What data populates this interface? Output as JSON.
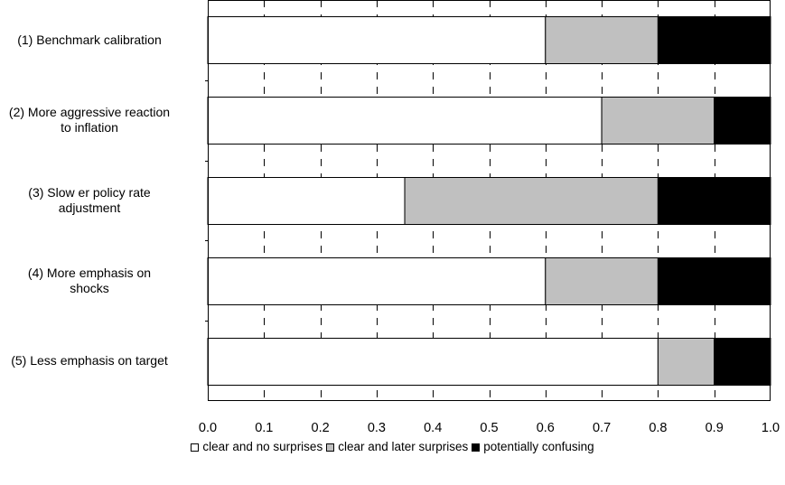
{
  "chart_data": {
    "type": "bar",
    "orientation": "horizontal",
    "stacked": true,
    "categories": [
      [
        "(1) Benchmark calibration"
      ],
      [
        "(2) More aggressive reaction",
        "to inflation"
      ],
      [
        "(3) Slow er policy rate",
        "adjustment"
      ],
      [
        "(4) More emphasis on",
        "shocks"
      ],
      [
        "(5) Less emphasis on  target"
      ]
    ],
    "series": [
      {
        "name": "clear and no surprises",
        "color": "#ffffff",
        "values": [
          0.6,
          0.7,
          0.35,
          0.6,
          0.8
        ]
      },
      {
        "name": "clear and later surprises",
        "color": "#c0c0c0",
        "values": [
          0.2,
          0.2,
          0.45,
          0.2,
          0.1
        ]
      },
      {
        "name": "potentially confusing",
        "color": "#000000",
        "values": [
          0.2,
          0.1,
          0.2,
          0.2,
          0.1
        ]
      }
    ],
    "xlim": [
      0,
      1
    ],
    "xticks": [
      "0.0",
      "0.1",
      "0.2",
      "0.3",
      "0.4",
      "0.5",
      "0.6",
      "0.7",
      "0.8",
      "0.9",
      "1.0"
    ],
    "grid": "vertical dashed",
    "legend_position": "bottom"
  }
}
